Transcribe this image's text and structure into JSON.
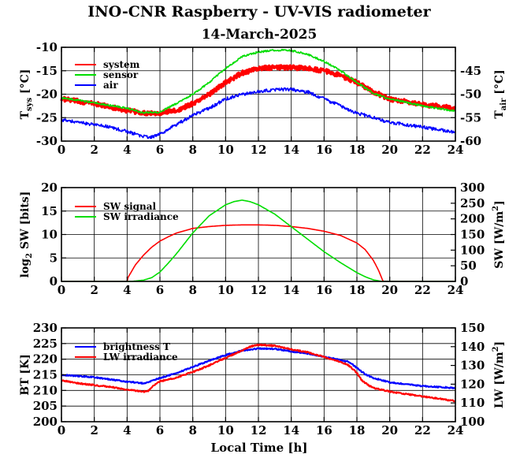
{
  "figure": {
    "title": "INO-CNR Raspberry - UV-VIS radiometer",
    "subtitle": "14-March-2025",
    "xlabel": "Local Time [h]"
  },
  "chart_data": [
    {
      "id": "temperature",
      "type": "line",
      "xlim": [
        0,
        24
      ],
      "ylim_left": [
        -30,
        -10
      ],
      "ylim_right": [
        -60,
        -40
      ],
      "xticks": [
        0,
        2,
        4,
        6,
        8,
        10,
        12,
        14,
        16,
        18,
        20,
        22,
        24
      ],
      "yticks_left": [
        -30,
        -25,
        -20,
        -15,
        -10
      ],
      "yticks_right": [
        -60,
        -55,
        -50,
        -45
      ],
      "ylabel_left": "T",
      "ylabel_left_sub": "sys",
      "ylabel_left_unit": "[°C]",
      "ylabel_right": "T",
      "ylabel_right_sub": "air",
      "ylabel_right_unit": "[°C]",
      "grid": true,
      "legend_position": "top-left",
      "series": [
        {
          "name": "system",
          "color": "#ff0000",
          "axis": "left",
          "width": 3.5,
          "noise": 0.45,
          "x": [
            0,
            2,
            4,
            5,
            6,
            7,
            8,
            9,
            10,
            11,
            12,
            13,
            14,
            15,
            16,
            17,
            18,
            19,
            20,
            22,
            24
          ],
          "y": [
            -21,
            -22,
            -23.5,
            -24,
            -24,
            -23.5,
            -22,
            -20,
            -17.5,
            -15.5,
            -14.5,
            -14.3,
            -14.3,
            -14.5,
            -15,
            -16,
            -17.5,
            -19.5,
            -21,
            -22.2,
            -23
          ]
        },
        {
          "name": "sensor",
          "color": "#00dd00",
          "axis": "left",
          "width": 1.6,
          "nois": 0,
          "noise": 0.2,
          "x": [
            0,
            2,
            4,
            5,
            6,
            7,
            8,
            9,
            10,
            11,
            12,
            13,
            14,
            15,
            16,
            17,
            18,
            19,
            20,
            22,
            24
          ],
          "y": [
            -20.8,
            -21.8,
            -23,
            -24,
            -23.8,
            -22,
            -20,
            -17.5,
            -14.5,
            -12,
            -11,
            -10.6,
            -10.7,
            -11.5,
            -13,
            -15,
            -17.5,
            -19.8,
            -21,
            -22.5,
            -23.6
          ]
        },
        {
          "name": "air",
          "color": "#0000ff",
          "axis": "right",
          "width": 1.6,
          "noise": 0.35,
          "x": [
            0,
            1,
            2,
            3,
            4,
            5,
            5.5,
            6,
            7,
            8,
            9,
            10,
            11,
            12,
            13,
            14,
            15,
            16,
            17,
            18,
            19,
            20,
            22,
            24
          ],
          "y": [
            -55.5,
            -56,
            -56.5,
            -57,
            -58,
            -59,
            -59.2,
            -58.5,
            -56.5,
            -54.5,
            -53,
            -51,
            -50,
            -49.5,
            -49,
            -49,
            -49.5,
            -51,
            -52.5,
            -54,
            -55,
            -56,
            -57,
            -58.2
          ]
        }
      ]
    },
    {
      "id": "shortwave",
      "type": "line",
      "xlim": [
        0,
        24
      ],
      "ylim_left": [
        0,
        20
      ],
      "ylim_right": [
        0,
        300
      ],
      "xticks": [
        0,
        2,
        4,
        6,
        8,
        10,
        12,
        14,
        16,
        18,
        20,
        22,
        24
      ],
      "yticks_left": [
        0,
        5,
        10,
        15,
        20
      ],
      "yticks_right": [
        0,
        50,
        100,
        150,
        200,
        250,
        300
      ],
      "ylabel_left": "log",
      "ylabel_left_sub": "2",
      "ylabel_left_unit": "SW [bits]",
      "ylabel_right": "SW [W/m",
      "ylabel_right_sup": "2",
      "ylabel_right_unit": "]",
      "grid": true,
      "legend_position": "top-left",
      "series": [
        {
          "name": "SW signal",
          "color": "#ff0000",
          "axis": "left",
          "width": 1.6,
          "noise": 0,
          "x": [
            0,
            4.0,
            4.05,
            4.5,
            5,
            5.5,
            6,
            6.5,
            7,
            8,
            9,
            10,
            11,
            12,
            13,
            14,
            15,
            16,
            17,
            18,
            18.5,
            19,
            19.3,
            19.55,
            19.6,
            24
          ],
          "y": [
            0,
            0,
            0.8,
            3.5,
            5.6,
            7.3,
            8.6,
            9.5,
            10.3,
            11.3,
            11.7,
            11.95,
            12.05,
            12.05,
            11.95,
            11.7,
            11.3,
            10.7,
            9.8,
            8.2,
            6.8,
            4.5,
            2.5,
            0.4,
            0,
            0
          ]
        },
        {
          "name": "SW irradiance",
          "color": "#00dd00",
          "axis": "right",
          "width": 1.6,
          "noise": 0,
          "x": [
            0,
            4.3,
            5,
            5.5,
            6,
            6.5,
            7,
            8,
            9,
            10,
            10.5,
            11,
            11.5,
            12,
            13,
            14,
            15,
            16,
            17,
            18,
            18.5,
            19,
            19.5,
            24
          ],
          "y": [
            0,
            0,
            4,
            12,
            30,
            58,
            88,
            155,
            210,
            245,
            255,
            260,
            255,
            245,
            215,
            175,
            135,
            95,
            60,
            28,
            15,
            5,
            0,
            0
          ]
        }
      ]
    },
    {
      "id": "longwave",
      "type": "line",
      "xlim": [
        0,
        24
      ],
      "ylim_left": [
        200,
        230
      ],
      "ylim_right": [
        100,
        150
      ],
      "xticks": [
        0,
        2,
        4,
        6,
        8,
        10,
        12,
        14,
        16,
        18,
        20,
        22,
        24
      ],
      "yticks_left": [
        200,
        205,
        210,
        215,
        220,
        225,
        230
      ],
      "yticks_right": [
        100,
        110,
        120,
        130,
        140,
        150
      ],
      "ylabel_left": "BT [K]",
      "ylabel_right": "LW [W/m",
      "ylabel_right_sup": "2",
      "ylabel_right_unit": "]",
      "grid": true,
      "legend_position": "top-left",
      "series": [
        {
          "name": "brightness T",
          "color": "#0000ff",
          "axis": "left",
          "width": 2.2,
          "noise": 0.2,
          "x": [
            0,
            1,
            2,
            3,
            4,
            5,
            5.5,
            6,
            7,
            8,
            9,
            10,
            11,
            12,
            13,
            14,
            15,
            16,
            17,
            17.5,
            18,
            18.5,
            19,
            20,
            22,
            24
          ],
          "y": [
            215,
            214.6,
            214.2,
            213.5,
            212.8,
            212.3,
            213,
            214,
            215.5,
            217.5,
            219.5,
            221.3,
            222.8,
            223.4,
            223.3,
            222.5,
            221.8,
            220.8,
            219.7,
            219.2,
            217.2,
            215.2,
            214,
            212.6,
            211.4,
            210.8
          ]
        },
        {
          "name": "LW irradiance",
          "color": "#ff0000",
          "axis": "right",
          "width": 2.2,
          "noise": 0.35,
          "x": [
            0,
            1,
            2,
            3,
            4,
            5,
            5.3,
            5.6,
            6,
            7,
            8,
            9,
            10,
            11,
            11.5,
            12,
            13,
            14,
            15,
            16,
            17,
            17.5,
            18,
            18.3,
            18.7,
            19,
            20,
            22,
            24
          ],
          "y": [
            122,
            120.5,
            119.5,
            118.5,
            117,
            116,
            116.5,
            119,
            121.5,
            123.5,
            126.5,
            130,
            134,
            138,
            140,
            141,
            140.5,
            138.5,
            137,
            134.5,
            132,
            130,
            126,
            122,
            119.5,
            118,
            116,
            113.5,
            111
          ]
        }
      ]
    }
  ]
}
